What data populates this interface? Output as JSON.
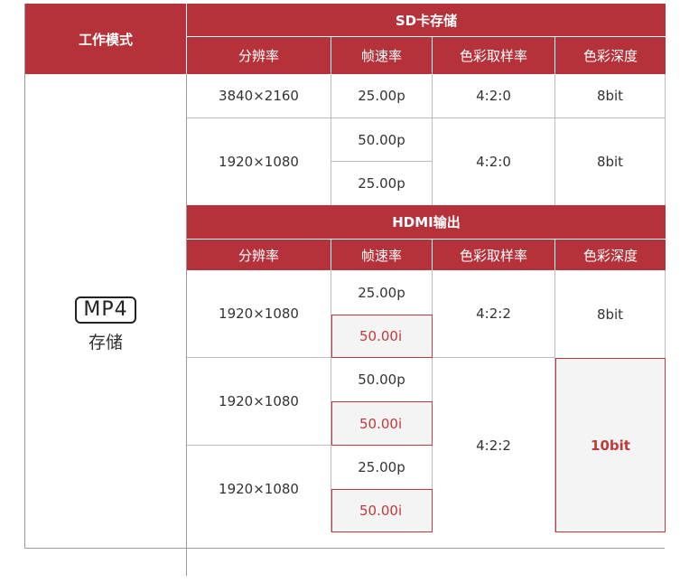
{
  "header": {
    "mode_label": "工作模式",
    "sd_group": "SD卡存储",
    "hdmi_group": "HDMI输出",
    "columns": {
      "resolution": "分辨率",
      "frame_rate": "帧速率",
      "chroma": "色彩取样率",
      "depth": "色彩深度"
    }
  },
  "mode": {
    "badge": "MP4",
    "label": "存储"
  },
  "sd_rows": [
    {
      "resolution": "3840×2160",
      "rates": [
        "25.00p"
      ],
      "chroma": "4:2:0",
      "depth": "8bit"
    },
    {
      "resolution": "1920×1080",
      "rates": [
        "50.00p",
        "25.00p"
      ],
      "chroma": "4:2:0",
      "depth": "8bit"
    }
  ],
  "hdmi_rows": [
    {
      "resolution": "1920×1080",
      "rates": [
        "25.00p",
        "50.00i"
      ]
    },
    {
      "resolution": "1920×1080",
      "rates": [
        "50.00p",
        "50.00i"
      ]
    },
    {
      "resolution": "1920×1080",
      "rates": [
        "25.00p",
        "50.00i"
      ]
    }
  ],
  "hdmi_chroma": [
    "4:2:2",
    "4:2:2"
  ],
  "hdmi_depth": [
    "8bit",
    "10bit"
  ],
  "colors": {
    "header_bg": "#b6323b",
    "highlight_border": "#c1393d",
    "highlight_text": "#c1393d"
  }
}
